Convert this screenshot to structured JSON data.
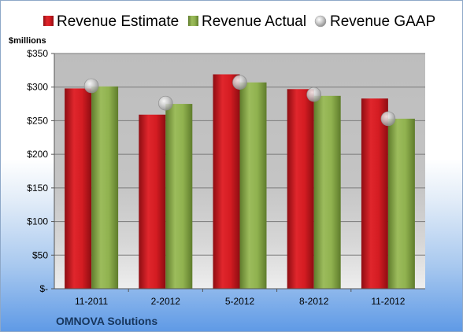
{
  "company": "OMNOVA Solutions",
  "colors": {
    "estimate": "#c8141b",
    "actual": "#8aaa4c",
    "gaap": "#b8b8b8"
  },
  "chart_data": {
    "type": "bar",
    "ylabel": "$millions",
    "ylim": [
      0,
      350
    ],
    "yticks": [
      0,
      50,
      100,
      150,
      200,
      250,
      300,
      350
    ],
    "ytick_labels": [
      "$-",
      "$50",
      "$100",
      "$150",
      "$200",
      "$250",
      "$300",
      "$350"
    ],
    "categories": [
      "11-2011",
      "2-2012",
      "5-2012",
      "8-2012",
      "11-2012"
    ],
    "series": [
      {
        "name": "Revenue Estimate",
        "type": "bar",
        "values": [
          298,
          259,
          319,
          297,
          283
        ]
      },
      {
        "name": "Revenue Actual",
        "type": "bar",
        "values": [
          301,
          275,
          307,
          287,
          253
        ]
      },
      {
        "name": "Revenue GAAP",
        "type": "scatter",
        "values": [
          302,
          276,
          307,
          289,
          253
        ]
      }
    ],
    "legend_position": "top",
    "grid": true
  }
}
